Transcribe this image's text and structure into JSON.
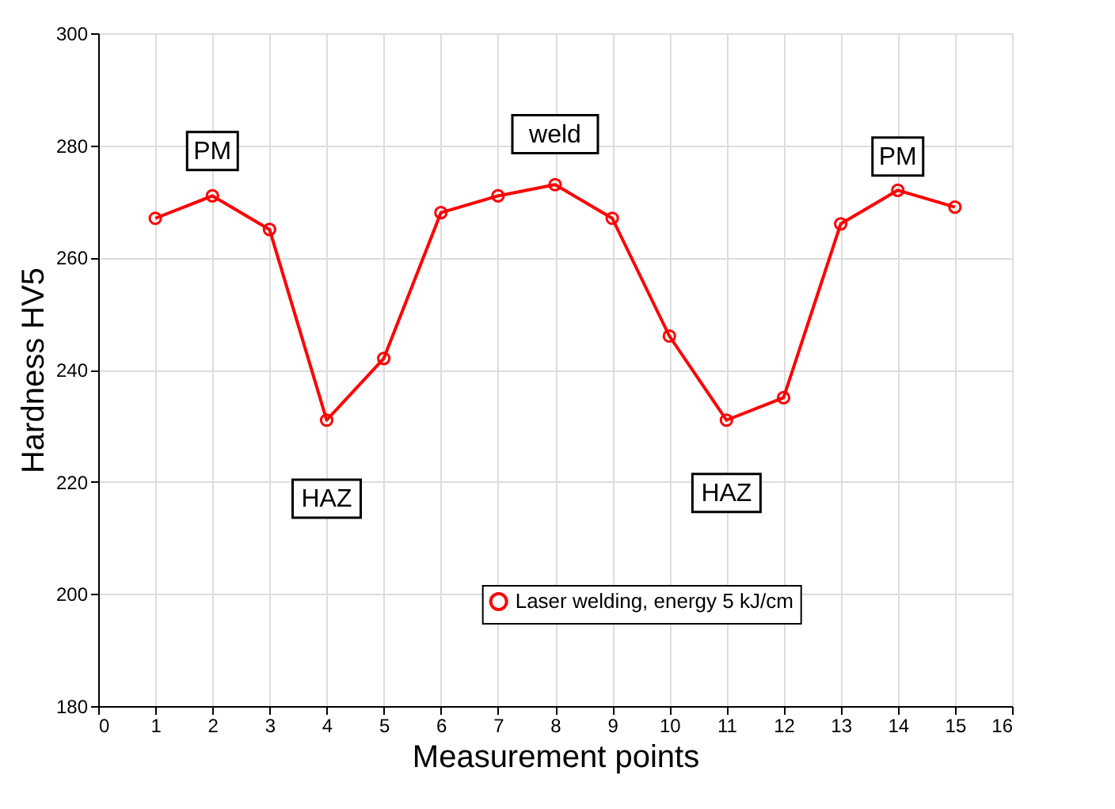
{
  "chart_data": {
    "type": "line",
    "xlabel": "Measurement points",
    "ylabel": "Hardness HV5",
    "x": [
      1,
      2,
      3,
      4,
      5,
      6,
      7,
      8,
      9,
      10,
      11,
      12,
      13,
      14,
      15
    ],
    "series": [
      {
        "name": "Laser welding, energy 5 kJ/cm",
        "color": "#ff0000",
        "values": [
          267,
          271,
          265,
          231,
          242,
          268,
          271,
          273,
          267,
          246,
          231,
          235,
          266,
          272,
          269
        ]
      }
    ],
    "xlim": [
      0,
      16
    ],
    "xticks": [
      0,
      1,
      2,
      3,
      4,
      5,
      6,
      7,
      8,
      9,
      10,
      11,
      12,
      13,
      14,
      15,
      16
    ],
    "ylim": [
      180,
      300
    ],
    "yticks": [
      180,
      200,
      220,
      240,
      260,
      280,
      300
    ],
    "annotations": [
      {
        "text": "PM",
        "x": 2,
        "y": 279
      },
      "weld",
      {
        "text": "HAZ",
        "x": 4,
        "y": 217
      },
      {
        "text": "HAZ",
        "x": 11,
        "y": 218
      },
      {
        "text": "PM",
        "x": 14,
        "y": 278
      }
    ],
    "grid": true,
    "legend": "bottom",
    "marker": "circle",
    "line_style": "solid"
  }
}
